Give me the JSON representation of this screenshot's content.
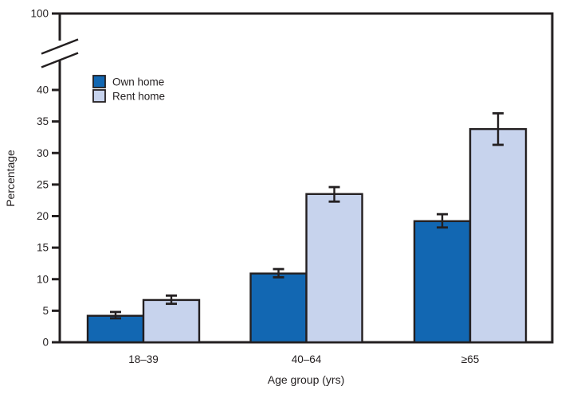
{
  "chart_data": {
    "type": "bar",
    "title": "",
    "xlabel": "Age group (yrs)",
    "ylabel": "Percentage",
    "categories": [
      "18–39",
      "40–64",
      "≥65"
    ],
    "series": [
      {
        "name": "Own home",
        "color": "#1267b2",
        "values": [
          4.2,
          10.9,
          19.2
        ],
        "ci_low": [
          3.8,
          10.3,
          18.2
        ],
        "ci_high": [
          4.8,
          11.6,
          20.3
        ]
      },
      {
        "name": "Rent home",
        "color": "#c7d3ed",
        "values": [
          6.7,
          23.5,
          33.8
        ],
        "ci_low": [
          6.1,
          22.3,
          31.3
        ],
        "ci_high": [
          7.4,
          24.6,
          36.3
        ]
      }
    ],
    "yticks": [
      0,
      5,
      10,
      15,
      20,
      25,
      30,
      35,
      40,
      100
    ],
    "ylim": [
      0,
      100
    ],
    "axis_break": true,
    "break_between": [
      40,
      100
    ],
    "error_bars": true,
    "grid": false,
    "legend_position": "upper-left-inside",
    "frame_color": "#231f20"
  }
}
